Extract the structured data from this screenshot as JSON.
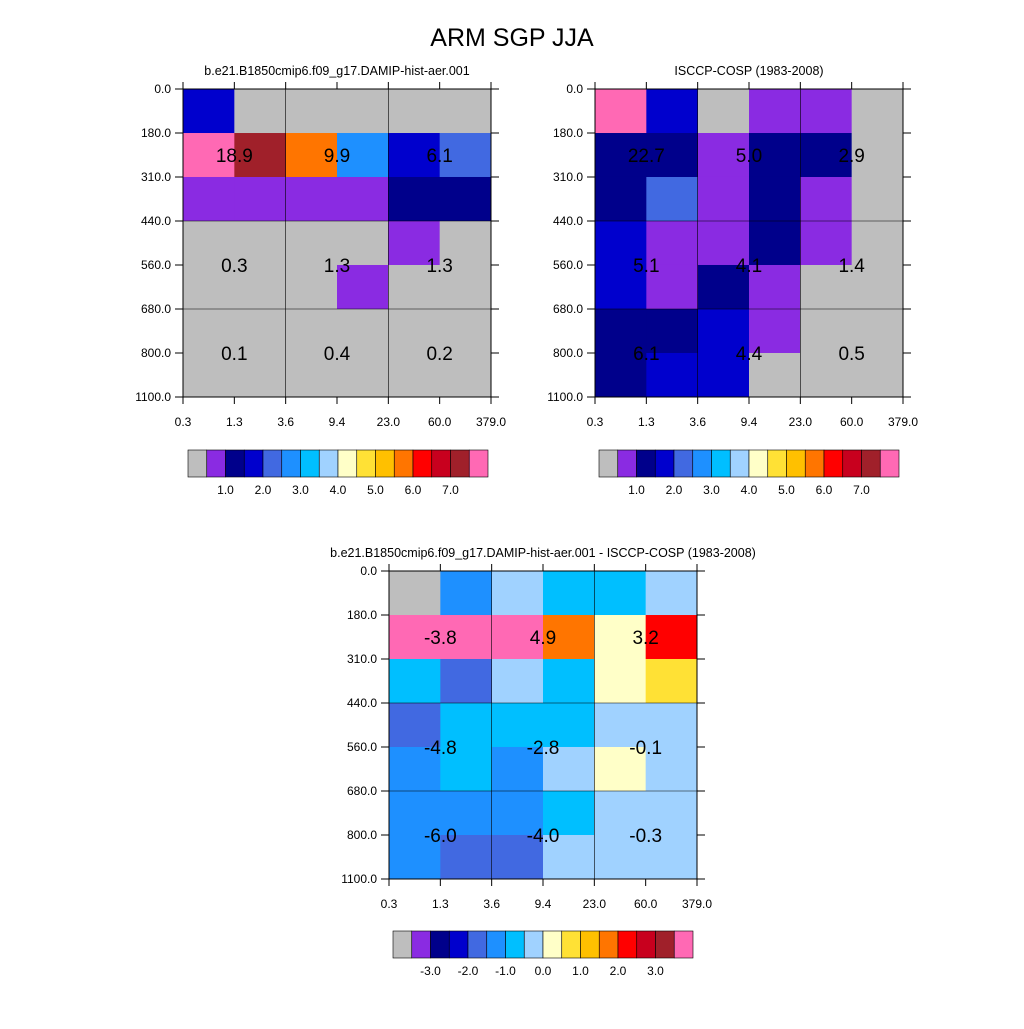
{
  "title": "ARM SGP JJA",
  "palettes": {
    "absolute": [
      "#bebebe",
      "#8a2be2",
      "#00008b",
      "#0000cd",
      "#4169e1",
      "#1e90ff",
      "#00bfff",
      "#a0d2ff",
      "#ffffc8",
      "#ffe135",
      "#ffc000",
      "#ff7500",
      "#ff0000",
      "#c8001e",
      "#a0202a",
      "#ff69b4"
    ],
    "difference": [
      "#bebebe",
      "#8a2be2",
      "#00008b",
      "#0000cd",
      "#4169e1",
      "#1e90ff",
      "#00bfff",
      "#a0d2ff",
      "#ffffc8",
      "#ffe135",
      "#ffc000",
      "#ff7500",
      "#ff0000",
      "#c8001e",
      "#a0202a",
      "#ff69b4"
    ]
  },
  "chart_data": [
    {
      "type": "heatmap",
      "title": "b.e21.B1850cmip6.f09_g17.DAMIP-hist-aer.001",
      "x_ticks": [
        "0.3",
        "1.3",
        "3.6",
        "9.4",
        "23.0",
        "60.0",
        "379.0"
      ],
      "y_ticks": [
        "0.0",
        "180.0",
        "310.0",
        "440.0",
        "560.0",
        "680.0",
        "800.0",
        "1100.0"
      ],
      "cell_colors": [
        [
          3,
          0,
          0,
          0,
          0,
          0
        ],
        [
          15,
          14,
          11,
          5,
          3,
          4
        ],
        [
          1,
          1,
          1,
          1,
          2,
          2
        ],
        [
          0,
          0,
          0,
          0,
          1,
          0
        ],
        [
          0,
          0,
          0,
          1,
          0,
          0
        ],
        [
          0,
          0,
          0,
          0,
          0,
          0
        ],
        [
          0,
          0,
          0,
          0,
          0,
          0
        ]
      ],
      "labels": [
        {
          "text": "18.9",
          "col": 0,
          "row": 1
        },
        {
          "text": "9.9",
          "col": 2,
          "row": 1
        },
        {
          "text": "6.1",
          "col": 4,
          "row": 1
        },
        {
          "text": "0.3",
          "col": 0,
          "row": 3.5
        },
        {
          "text": "1.3",
          "col": 2,
          "row": 3.5
        },
        {
          "text": "1.3",
          "col": 4,
          "row": 3.5
        },
        {
          "text": "0.1",
          "col": 0,
          "row": 5.5
        },
        {
          "text": "0.4",
          "col": 2,
          "row": 5.5
        },
        {
          "text": "0.2",
          "col": 4,
          "row": 5.5
        }
      ],
      "colorbar_palette": "absolute",
      "colorbar_labels": [
        "1.0",
        "2.0",
        "3.0",
        "4.0",
        "5.0",
        "6.0",
        "7.0"
      ]
    },
    {
      "type": "heatmap",
      "title": "ISCCP-COSP (1983-2008)",
      "x_ticks": [
        "0.3",
        "1.3",
        "3.6",
        "9.4",
        "23.0",
        "60.0",
        "379.0"
      ],
      "y_ticks": [
        "0.0",
        "180.0",
        "310.0",
        "440.0",
        "560.0",
        "680.0",
        "800.0",
        "1100.0"
      ],
      "cell_colors": [
        [
          15,
          3,
          0,
          1,
          1,
          0
        ],
        [
          2,
          2,
          1,
          2,
          2,
          0
        ],
        [
          2,
          4,
          1,
          2,
          1,
          0
        ],
        [
          3,
          1,
          1,
          2,
          1,
          0
        ],
        [
          3,
          1,
          2,
          1,
          0,
          0
        ],
        [
          2,
          2,
          3,
          1,
          0,
          0
        ],
        [
          2,
          3,
          3,
          0,
          0,
          0
        ]
      ],
      "labels": [
        {
          "text": "22.7",
          "col": 0,
          "row": 1
        },
        {
          "text": "5.0",
          "col": 2,
          "row": 1
        },
        {
          "text": "2.9",
          "col": 4,
          "row": 1
        },
        {
          "text": "5.1",
          "col": 0,
          "row": 3.5
        },
        {
          "text": "4.1",
          "col": 2,
          "row": 3.5
        },
        {
          "text": "1.4",
          "col": 4,
          "row": 3.5
        },
        {
          "text": "6.1",
          "col": 0,
          "row": 5.5
        },
        {
          "text": "4.4",
          "col": 2,
          "row": 5.5
        },
        {
          "text": "0.5",
          "col": 4,
          "row": 5.5
        }
      ],
      "colorbar_palette": "absolute",
      "colorbar_labels": [
        "1.0",
        "2.0",
        "3.0",
        "4.0",
        "5.0",
        "6.0",
        "7.0"
      ]
    },
    {
      "type": "heatmap",
      "title": "b.e21.B1850cmip6.f09_g17.DAMIP-hist-aer.001 - ISCCP-COSP (1983-2008)",
      "x_ticks": [
        "0.3",
        "1.3",
        "3.6",
        "9.4",
        "23.0",
        "60.0",
        "379.0"
      ],
      "y_ticks": [
        "0.0",
        "180.0",
        "310.0",
        "440.0",
        "560.0",
        "680.0",
        "800.0",
        "1100.0"
      ],
      "cell_colors": [
        [
          0,
          5,
          7,
          6,
          6,
          7
        ],
        [
          15,
          15,
          15,
          11,
          8,
          12
        ],
        [
          6,
          4,
          7,
          6,
          8,
          9
        ],
        [
          4,
          6,
          6,
          6,
          7,
          7
        ],
        [
          5,
          6,
          5,
          7,
          8,
          7
        ],
        [
          5,
          5,
          5,
          6,
          7,
          7
        ],
        [
          5,
          4,
          4,
          7,
          7,
          7
        ]
      ],
      "labels": [
        {
          "text": "-3.8",
          "col": 0,
          "row": 1
        },
        {
          "text": "4.9",
          "col": 2,
          "row": 1
        },
        {
          "text": "3.2",
          "col": 4,
          "row": 1
        },
        {
          "text": "-4.8",
          "col": 0,
          "row": 3.5
        },
        {
          "text": "-2.8",
          "col": 2,
          "row": 3.5
        },
        {
          "text": "-0.1",
          "col": 4,
          "row": 3.5
        },
        {
          "text": "-6.0",
          "col": 0,
          "row": 5.5
        },
        {
          "text": "-4.0",
          "col": 2,
          "row": 5.5
        },
        {
          "text": "-0.3",
          "col": 4,
          "row": 5.5
        }
      ],
      "colorbar_palette": "difference",
      "colorbar_labels": [
        "-3.0",
        "-2.0",
        "-1.0",
        "0.0",
        "1.0",
        "2.0",
        "3.0"
      ]
    }
  ]
}
